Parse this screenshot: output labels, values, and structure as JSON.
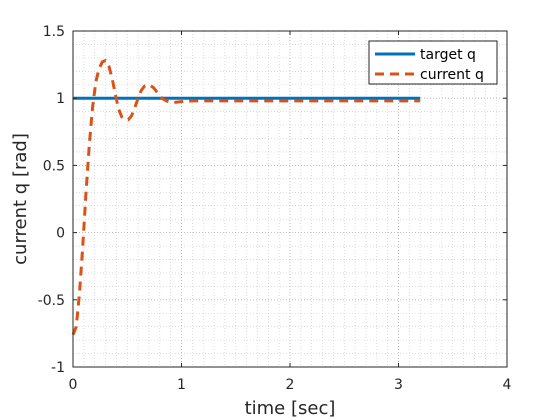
{
  "chart_data": {
    "type": "line",
    "xlabel": "time [sec]",
    "ylabel": "current q [rad]",
    "xlim": [
      0,
      4
    ],
    "ylim": [
      -1,
      1.5
    ],
    "xticks": [
      0,
      1,
      2,
      3,
      4
    ],
    "yticks": [
      -1,
      -0.5,
      0,
      0.5,
      1,
      1.5
    ],
    "xtick_labels": [
      "0",
      "1",
      "2",
      "3",
      "4"
    ],
    "ytick_labels": [
      "-1",
      "-0.5",
      "0",
      "0.5",
      "1",
      "1.5"
    ],
    "grid": true,
    "minor_grid": true,
    "legend_position": "top-right",
    "series": [
      {
        "name": "target q",
        "color": "#0072BD",
        "style": "solid",
        "x": [
          0,
          3.2
        ],
        "y": [
          1,
          1
        ]
      },
      {
        "name": "current q",
        "color": "#D95319",
        "style": "dashed",
        "x": [
          0.0,
          0.03,
          0.06,
          0.09,
          0.12,
          0.15,
          0.18,
          0.21,
          0.24,
          0.27,
          0.3,
          0.33,
          0.36,
          0.39,
          0.42,
          0.45,
          0.48,
          0.51,
          0.54,
          0.57,
          0.6,
          0.63,
          0.66,
          0.7,
          0.74,
          0.78,
          0.82,
          0.86,
          0.9,
          0.95,
          1.0,
          1.1,
          1.3,
          1.6,
          2.0,
          2.5,
          3.0,
          3.2
        ],
        "y": [
          -0.76,
          -0.7,
          -0.45,
          -0.1,
          0.3,
          0.65,
          0.93,
          1.12,
          1.22,
          1.27,
          1.28,
          1.24,
          1.15,
          1.03,
          0.92,
          0.86,
          0.84,
          0.84,
          0.87,
          0.93,
          1.0,
          1.06,
          1.09,
          1.1,
          1.08,
          1.04,
          1.0,
          0.98,
          0.97,
          0.97,
          0.975,
          0.98,
          0.98,
          0.98,
          0.98,
          0.98,
          0.98,
          0.98
        ]
      }
    ]
  }
}
